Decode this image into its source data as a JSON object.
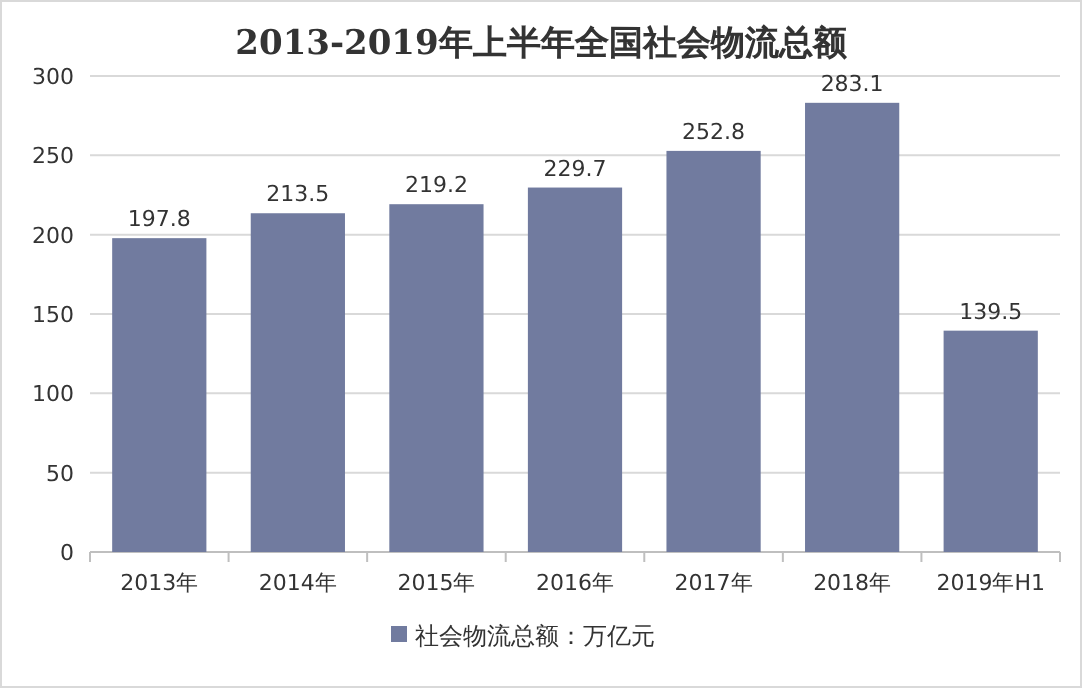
{
  "chart_data": {
    "type": "bar",
    "title": "2013-2019年上半年全国社会物流总额",
    "categories": [
      "2013年",
      "2014年",
      "2015年",
      "2016年",
      "2017年",
      "2018年",
      "2019年H1"
    ],
    "series": [
      {
        "name": "社会物流总额：万亿元",
        "color": "#717b9f",
        "values": [
          197.8,
          213.5,
          219.2,
          229.7,
          252.8,
          283.1,
          139.5
        ]
      }
    ],
    "ylim": [
      0,
      300
    ],
    "yticks": [
      0,
      50,
      100,
      150,
      200,
      250,
      300
    ],
    "grid": "y",
    "data_labels": true,
    "legend": "bottom"
  }
}
